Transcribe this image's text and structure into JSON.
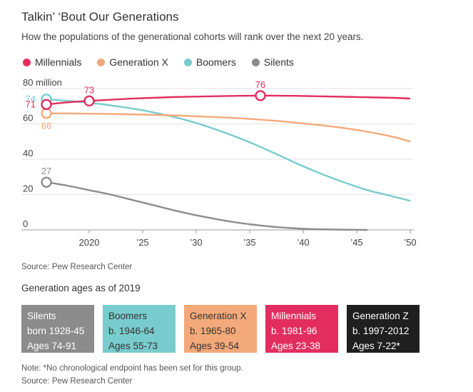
{
  "title": "Talkin’ ‘Bout Our Generations",
  "subtitle": "How the populations of the generational cohorts will rank over the next 20 years.",
  "legend": [
    {
      "label": "Millennials",
      "color": "#e32d5e"
    },
    {
      "label": "Generation X",
      "color": "#f4a97a"
    },
    {
      "label": "Boomers",
      "color": "#79cccd"
    },
    {
      "label": "Silents",
      "color": "#8c8c8c"
    }
  ],
  "chart_data": {
    "type": "line",
    "ylabel": "",
    "xlabel": "",
    "ylim": [
      0,
      80
    ],
    "xlim": [
      2016,
      2050
    ],
    "y_ticks": [
      {
        "value": 0,
        "label": "0"
      },
      {
        "value": 20,
        "label": "20"
      },
      {
        "value": 40,
        "label": "40"
      },
      {
        "value": 60,
        "label": "60"
      },
      {
        "value": 80,
        "label": "80 million"
      }
    ],
    "x_ticks": [
      {
        "value": 2020,
        "label": "2020"
      },
      {
        "value": 2025,
        "label": "’25"
      },
      {
        "value": 2030,
        "label": "’30"
      },
      {
        "value": 2035,
        "label": "’35"
      },
      {
        "value": 2040,
        "label": "’40"
      },
      {
        "value": 2045,
        "label": "’45"
      },
      {
        "value": 2050,
        "label": "’50"
      }
    ],
    "series": [
      {
        "name": "Millennials",
        "color": "#e32d5e",
        "x": [
          2016,
          2018,
          2020,
          2024,
          2028,
          2032,
          2036,
          2040,
          2044,
          2048,
          2050
        ],
        "values": [
          71,
          72.2,
          73,
          74.3,
          75.2,
          75.7,
          76,
          75.8,
          75.3,
          74.8,
          74.3
        ]
      },
      {
        "name": "Generation X",
        "color": "#f4a97a",
        "x": [
          2016,
          2020,
          2024,
          2028,
          2032,
          2036,
          2040,
          2044,
          2048,
          2050
        ],
        "values": [
          66,
          65.8,
          65.4,
          64.8,
          63.8,
          62.4,
          60.3,
          57.5,
          53.2,
          50
        ]
      },
      {
        "name": "Boomers",
        "color": "#79cccd",
        "x": [
          2016,
          2018,
          2020,
          2022,
          2024,
          2026,
          2028,
          2030,
          2032,
          2034,
          2036,
          2038,
          2040,
          2042,
          2044,
          2046,
          2048,
          2050
        ],
        "values": [
          74,
          73,
          72,
          70.5,
          68.7,
          66.5,
          63.8,
          60.5,
          56.5,
          52,
          47,
          41.5,
          36,
          31,
          26.5,
          22.5,
          19.5,
          16.5
        ]
      },
      {
        "name": "Silents",
        "color": "#8c8c8c",
        "x": [
          2016,
          2018,
          2020,
          2022,
          2024,
          2026,
          2028,
          2030,
          2032,
          2034,
          2036,
          2038,
          2040,
          2042,
          2044,
          2046
        ],
        "values": [
          27,
          25,
          22.5,
          20,
          17,
          14,
          11,
          8.3,
          6,
          4,
          2.5,
          1.4,
          0.7,
          0.3,
          0.1,
          0
        ]
      }
    ],
    "annotations": [
      {
        "series": "Boomers",
        "x": 2016,
        "y": 74,
        "label": "74",
        "label_pos": "left"
      },
      {
        "series": "Millennials",
        "x": 2016,
        "y": 71,
        "label": "71",
        "label_pos": "left"
      },
      {
        "series": "Generation X",
        "x": 2016,
        "y": 66,
        "label": "66",
        "label_pos": "below"
      },
      {
        "series": "Silents",
        "x": 2016,
        "y": 27,
        "label": "27",
        "label_pos": "above"
      },
      {
        "series": "Millennials",
        "x": 2020,
        "y": 73,
        "label": "73",
        "label_pos": "above"
      },
      {
        "series": "Millennials",
        "x": 2036,
        "y": 76,
        "label": "76",
        "label_pos": "above"
      }
    ]
  },
  "source_1": "Source: Pew Research Center",
  "ages_title": "Generation ages as of 2019",
  "generations": [
    {
      "name": "Silents",
      "born": "born 1928-45",
      "ages": "Ages 74-91",
      "bg": "#8c8c8c",
      "fg": "#ffffff"
    },
    {
      "name": "Boomers",
      "born": "b. 1946-64",
      "ages": "Ages 55-73",
      "bg": "#79cccd",
      "fg": "#333333"
    },
    {
      "name": "Generation X",
      "born": "b. 1965-80",
      "ages": "Ages 39-54",
      "bg": "#f4a97a",
      "fg": "#333333"
    },
    {
      "name": "Millennials",
      "born": "b. 1981-96",
      "ages": "Ages 23-38",
      "bg": "#e32d5e",
      "fg": "#ffffff"
    },
    {
      "name": "Generation Z",
      "born": "b. 1997-2012",
      "ages": "Ages 7-22*",
      "bg": "#1f1f1f",
      "fg": "#ffffff"
    }
  ],
  "note": "Note: *No chronological endpoint has been set for this group.",
  "source_2": "Source: Pew Research Center"
}
